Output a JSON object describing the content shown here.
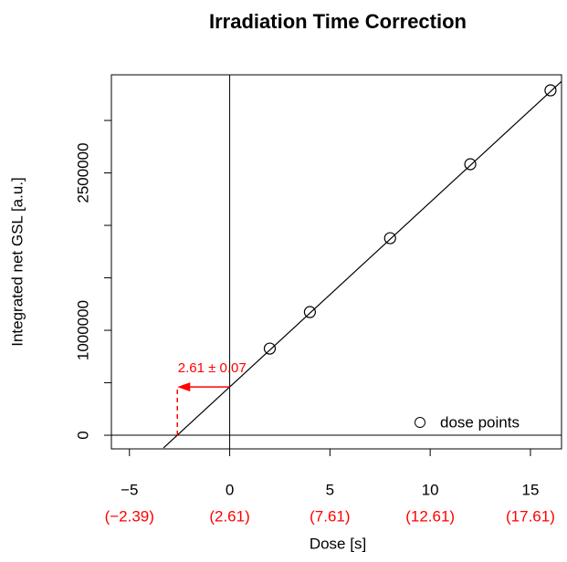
{
  "chart_data": {
    "type": "scatter",
    "title": "Irradiation Time Correction",
    "x_label": "Dose [s]",
    "y_label": "Integrated net GSL [a.u.]",
    "xlim": [
      -5.9,
      16.55
    ],
    "ylim": [
      -130000,
      3435000
    ],
    "xticks": [
      {
        "value": -5,
        "label": "−5"
      },
      0,
      5,
      10,
      15
    ],
    "x2ticks": [
      {
        "value": -5,
        "label": "(−2.39)"
      },
      {
        "value": 0,
        "label": "(2.61)"
      },
      {
        "value": 5,
        "label": "(7.61)"
      },
      {
        "value": 10,
        "label": "(12.61)"
      },
      {
        "value": 15,
        "label": "(17.61)"
      }
    ],
    "yticks": [
      0,
      {
        "value": 500000,
        "label": null
      },
      1000000,
      {
        "value": 1500000,
        "label": null
      },
      {
        "value": 2000000,
        "label": null
      },
      2500000,
      {
        "value": 3000000,
        "label": null
      }
    ],
    "series": [
      {
        "name": "dose points",
        "color": "#000000",
        "x": [
          2,
          4,
          8,
          12,
          16
        ],
        "values": [
          826000,
          1174000,
          1878000,
          2583000,
          3287000
        ]
      },
      {
        "type": "line",
        "color": "#000000",
        "x": [
          -3.3,
          16.55
        ],
        "values": [
          -121000,
          3373000
        ]
      }
    ],
    "annotation": {
      "label": "2.61 ± 0.07",
      "x": -2.61,
      "y": 460000,
      "color": "#ff0000"
    },
    "legend": "bottom-right"
  }
}
